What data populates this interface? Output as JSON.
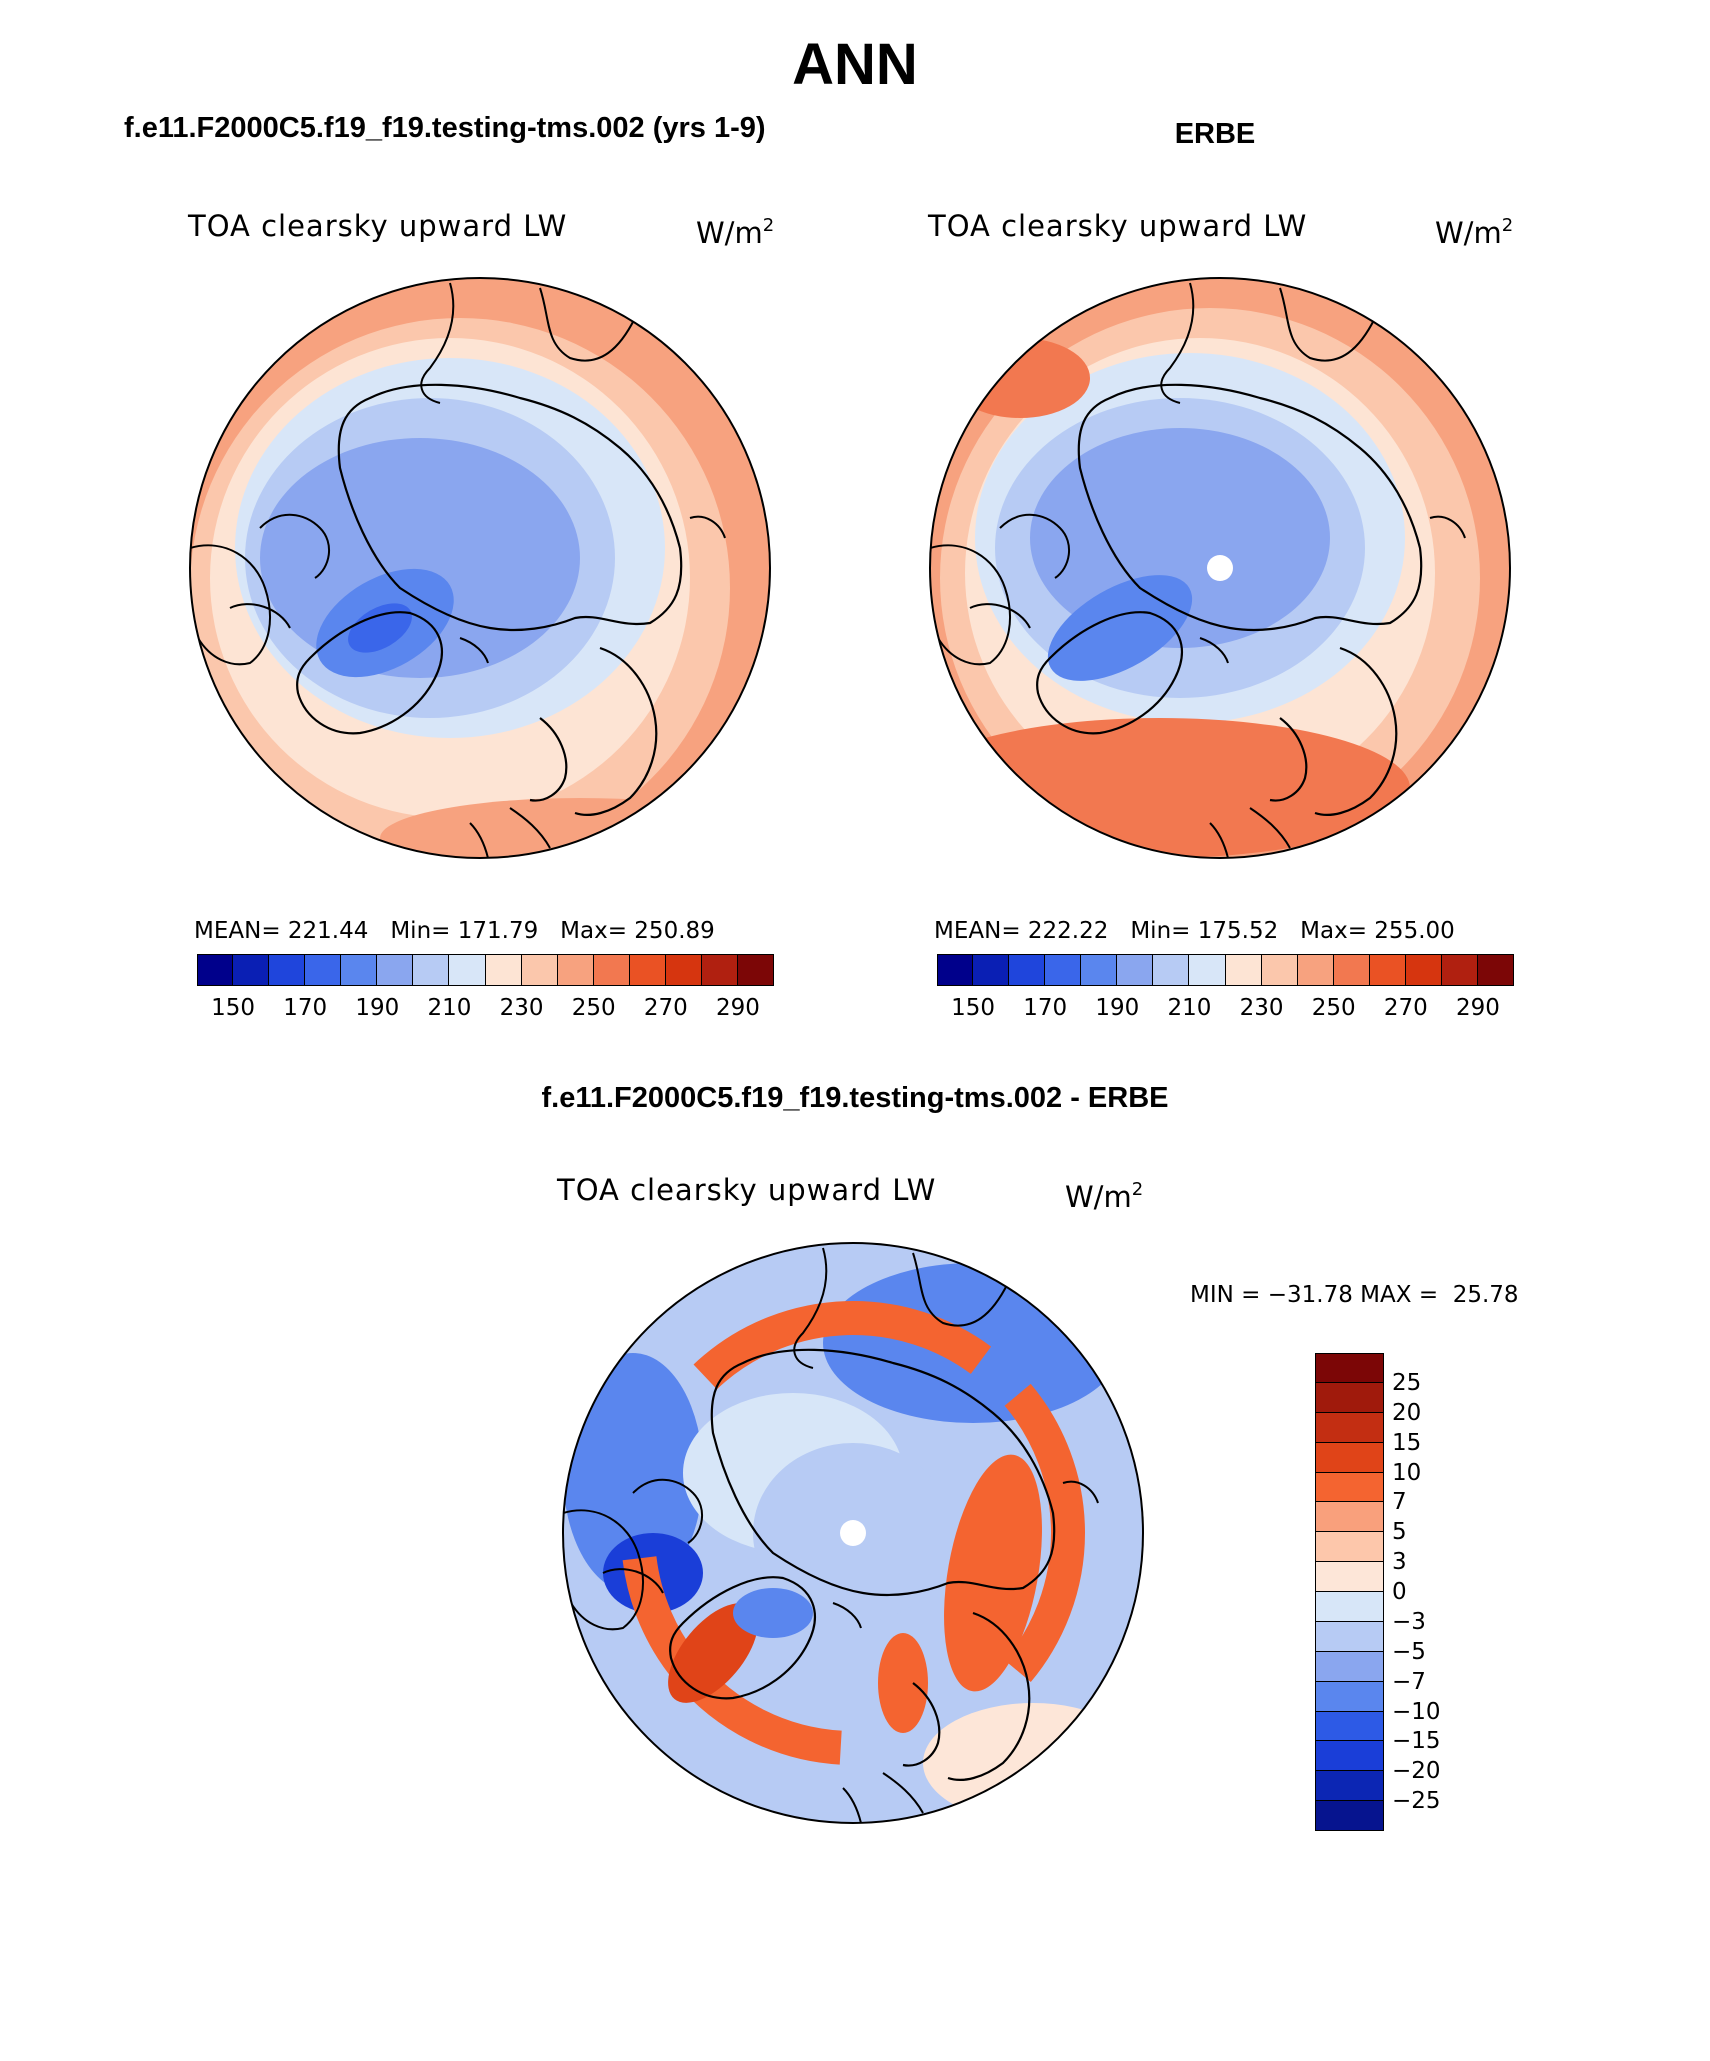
{
  "figure": {
    "title": "ANN",
    "field_name": "TOA clearsky upward LW",
    "units_base": "W/m",
    "units_exp": "2"
  },
  "panels": {
    "model": {
      "title": "f.e11.F2000C5.f19_f19.testing-tms.002 (yrs 1-9)",
      "mean_label": "MEAN=",
      "mean": "221.44",
      "min_label": "Min=",
      "min": "171.79",
      "max_label": "Max=",
      "max": "250.89"
    },
    "obs": {
      "title": "ERBE",
      "mean_label": "MEAN=",
      "mean": "222.22",
      "min_label": "Min=",
      "min": "175.52",
      "max_label": "Max=",
      "max": "255.00"
    },
    "diff": {
      "title": "f.e11.F2000C5.f19_f19.testing-tms.002 - ERBE",
      "min_label": "MIN =",
      "min": "−31.78",
      "max_label": "MAX =",
      "max": "25.78"
    }
  },
  "colorbars": {
    "abs": {
      "colors": [
        "#00008b",
        "#0a1fb4",
        "#1f45dc",
        "#3a66ea",
        "#5a86ee",
        "#8aa6ef",
        "#b7cbf4",
        "#d8e6f8",
        "#fde4d4",
        "#fbc7ac",
        "#f7a27f",
        "#f27850",
        "#ea5224",
        "#d6350f",
        "#b02010",
        "#7c0606"
      ],
      "tick_labels": [
        "150",
        "170",
        "190",
        "210",
        "230",
        "250",
        "270",
        "290"
      ]
    },
    "diff": {
      "colors": [
        "#7c0606",
        "#a01a0c",
        "#c32e12",
        "#e04418",
        "#f46430",
        "#f9a07c",
        "#fdc7ab",
        "#fde6d8",
        "#d7e6f8",
        "#b7cbf4",
        "#8aa6ef",
        "#5a86ee",
        "#2d5ae6",
        "#1a3ed8",
        "#0c26b4",
        "#06148f"
      ],
      "tick_labels": [
        "25",
        "20",
        "15",
        "10",
        "7",
        "5",
        "3",
        "0",
        "−3",
        "−5",
        "−7",
        "−10",
        "−15",
        "−20",
        "−25"
      ]
    }
  },
  "map_colors": {
    "land_outline": "#000000",
    "pole_hole": "#ffffff"
  }
}
